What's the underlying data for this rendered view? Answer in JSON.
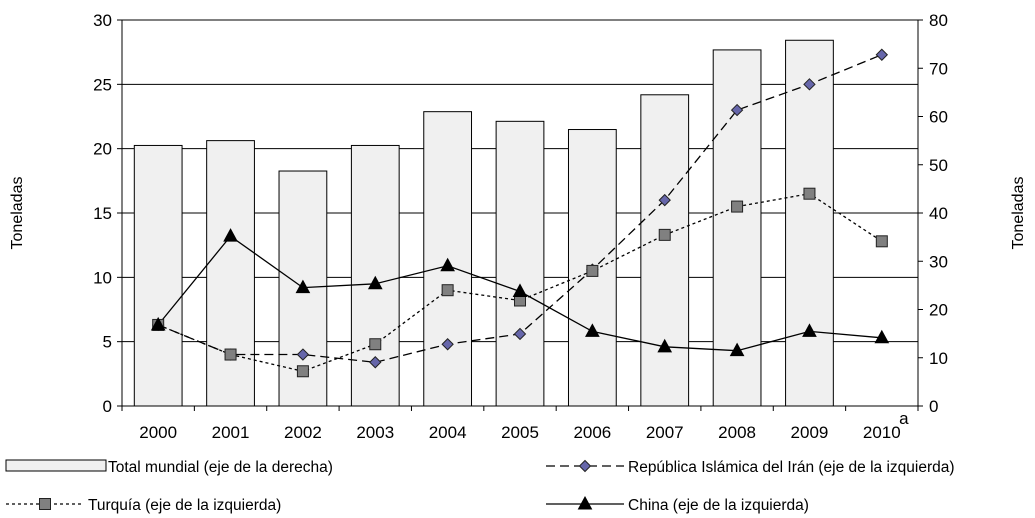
{
  "chart_data": {
    "type": "bar",
    "categories": [
      "2000",
      "2001",
      "2002",
      "2003",
      "2004",
      "2005",
      "2006",
      "2007",
      "2008",
      "2009",
      "2010"
    ],
    "category_footnote": {
      "category": "2010",
      "mark": "a"
    },
    "ylabel": "Toneladas",
    "y2label": "Toneladas",
    "ylim": [
      0,
      30
    ],
    "yticks": [
      0,
      5,
      10,
      15,
      20,
      25,
      30
    ],
    "y2lim": [
      0,
      80
    ],
    "y2ticks": [
      0,
      10,
      20,
      30,
      40,
      50,
      60,
      70,
      80
    ],
    "grid": true,
    "legend_position": "bottom",
    "series": [
      {
        "name": "Total mundial (eje de la derecha)",
        "type": "bar",
        "axis": "right",
        "color": "#f0f0f0",
        "values": [
          54,
          55,
          48.7,
          54,
          61,
          59,
          57.3,
          64.5,
          73.8,
          75.8,
          null
        ]
      },
      {
        "name": "República Islámica del Irán (eje de la izquierda)",
        "type": "line",
        "axis": "left",
        "style": "dashed",
        "marker": "diamond",
        "color": "#6666aa",
        "values": [
          6.3,
          4.0,
          4.0,
          3.4,
          4.8,
          5.6,
          10.6,
          16.0,
          23.0,
          25.0,
          27.3
        ]
      },
      {
        "name": "Turquía (eje de la izquierda)",
        "type": "line",
        "axis": "left",
        "style": "dotted",
        "marker": "square",
        "color": "#808080",
        "values": [
          6.3,
          4.0,
          2.7,
          4.8,
          9.0,
          8.2,
          10.5,
          13.3,
          15.5,
          16.5,
          12.8
        ]
      },
      {
        "name": "China (eje de la izquierda)",
        "type": "line",
        "axis": "left",
        "style": "solid",
        "marker": "triangle",
        "color": "#000000",
        "values": [
          6.3,
          13.2,
          9.2,
          9.5,
          10.9,
          8.9,
          5.8,
          4.6,
          4.3,
          5.8,
          5.3
        ]
      }
    ]
  }
}
